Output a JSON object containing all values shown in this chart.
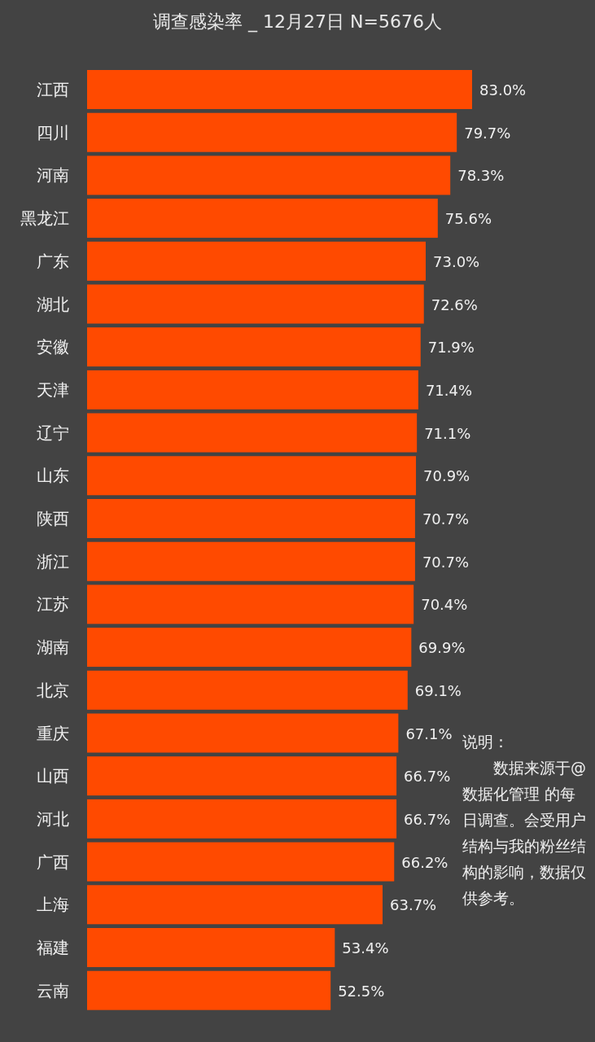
{
  "chart_data": {
    "type": "bar",
    "orientation": "horizontal",
    "title": "调查感染率 _ 12月27日 N=5676人",
    "categories": [
      "江西",
      "四川",
      "河南",
      "黑龙江",
      "广东",
      "湖北",
      "安徽",
      "天津",
      "辽宁",
      "山东",
      "陕西",
      "浙江",
      "江苏",
      "湖南",
      "北京",
      "重庆",
      "山西",
      "河北",
      "广西",
      "上海",
      "福建",
      "云南"
    ],
    "values": [
      83.0,
      79.7,
      78.3,
      75.6,
      73.0,
      72.6,
      71.9,
      71.4,
      71.1,
      70.9,
      70.7,
      70.7,
      70.4,
      69.9,
      69.1,
      67.1,
      66.7,
      66.7,
      66.2,
      63.7,
      53.4,
      52.5
    ],
    "value_labels": [
      "83.0%",
      "79.7%",
      "78.3%",
      "75.6%",
      "73.0%",
      "72.6%",
      "71.9%",
      "71.4%",
      "71.1%",
      "70.9%",
      "70.7%",
      "70.7%",
      "70.4%",
      "69.9%",
      "69.1%",
      "67.1%",
      "66.7%",
      "66.7%",
      "66.2%",
      "63.7%",
      "53.4%",
      "52.5%"
    ],
    "color": "#ff4a00",
    "annotations": [
      "说明：",
      "数据来源于@数据化管理 的每日调查。会受用户结构与我的粉丝结构的影响，数据仅供参考。"
    ]
  }
}
